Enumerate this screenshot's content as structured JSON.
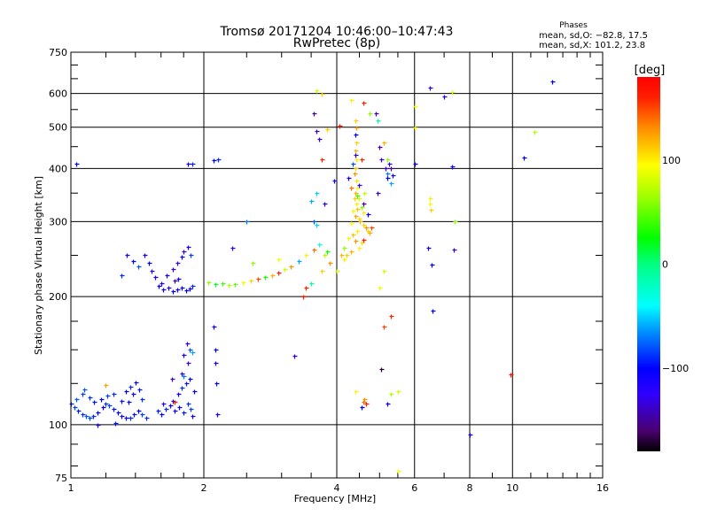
{
  "chart_data": {
    "type": "scatter",
    "title": "Tromsø 20171204 10:46:00–10:47:43",
    "subtitle": "RwPretec (8p)",
    "xlabel": "Frequency [MHz]",
    "ylabel": "Stationary phase Virtual Height [km]",
    "xscale": "log",
    "yscale": "log",
    "xlim": [
      1,
      16
    ],
    "ylim": [
      75,
      750
    ],
    "xticks": [
      "1",
      "2",
      "4",
      "6",
      "8",
      "10",
      "16"
    ],
    "xtick_values": [
      1,
      2,
      4,
      6,
      8,
      10,
      16
    ],
    "yticks": [
      "75",
      "100",
      "200",
      "300",
      "400",
      "500",
      "600",
      "750"
    ],
    "ytick_values": [
      75,
      100,
      200,
      300,
      400,
      500,
      600,
      750
    ],
    "xgrid": [
      2,
      4,
      6,
      8,
      10
    ],
    "ygrid": [
      100,
      200,
      300,
      400,
      500,
      600
    ],
    "stats": {
      "heading": "Phases",
      "line_o": "mean, sd,O: −82.8, 17.5",
      "line_x": "mean, sd,X: 101.2, 23.8"
    },
    "colorbar": {
      "label": "[deg]",
      "range": [
        -180,
        180
      ],
      "ticks": [
        "100",
        "0",
        "−100"
      ],
      "tick_values": [
        100,
        0,
        -100
      ],
      "stops": [
        [
          -180,
          "#000000"
        ],
        [
          -160,
          "#4a0070"
        ],
        [
          -125,
          "#3000ff"
        ],
        [
          -100,
          "#0000ff"
        ],
        [
          -65,
          "#0090ff"
        ],
        [
          -40,
          "#00ffff"
        ],
        [
          0,
          "#00ff80"
        ],
        [
          25,
          "#00ff00"
        ],
        [
          65,
          "#a0ff00"
        ],
        [
          95,
          "#ffff00"
        ],
        [
          130,
          "#ff9000"
        ],
        [
          160,
          "#ff2000"
        ],
        [
          180,
          "#ff0000"
        ]
      ]
    },
    "point_fields": [
      "frequency_MHz",
      "height_km",
      "phase_deg"
    ],
    "points": [
      [
        1.0,
        112,
        -90
      ],
      [
        1.02,
        110,
        -85
      ],
      [
        1.04,
        108,
        -95
      ],
      [
        1.06,
        106,
        -90
      ],
      [
        1.08,
        105,
        -80
      ],
      [
        1.1,
        104,
        -85
      ],
      [
        1.12,
        105,
        -90
      ],
      [
        1.15,
        107,
        -100
      ],
      [
        1.18,
        110,
        -105
      ],
      [
        1.2,
        112,
        -90
      ],
      [
        1.22,
        111,
        -85
      ],
      [
        1.25,
        109,
        -95
      ],
      [
        1.28,
        107,
        -100
      ],
      [
        1.3,
        105,
        -110
      ],
      [
        1.33,
        104,
        -105
      ],
      [
        1.36,
        104,
        -90
      ],
      [
        1.39,
        106,
        -95
      ],
      [
        1.42,
        108,
        -100
      ],
      [
        1.45,
        106,
        -85
      ],
      [
        1.48,
        104,
        -90
      ],
      [
        1.03,
        115,
        -80
      ],
      [
        1.06,
        118,
        -85
      ],
      [
        1.1,
        116,
        -90
      ],
      [
        1.13,
        113,
        -95
      ],
      [
        1.17,
        115,
        -100
      ],
      [
        1.21,
        117,
        -85
      ],
      [
        1.25,
        118,
        -90
      ],
      [
        1.3,
        114,
        -95
      ],
      [
        1.33,
        120,
        -100
      ],
      [
        1.36,
        123,
        -90
      ],
      [
        1.38,
        118,
        -110
      ],
      [
        1.4,
        126,
        -105
      ],
      [
        1.43,
        121,
        -95
      ],
      [
        1.45,
        115,
        -90
      ],
      [
        1.35,
        113,
        -100
      ],
      [
        1.26,
        101,
        -95
      ],
      [
        1.15,
        100,
        -110
      ],
      [
        1.07,
        121,
        -80
      ],
      [
        1.2,
        124,
        125
      ],
      [
        1.57,
        108,
        -95
      ],
      [
        1.6,
        106,
        -100
      ],
      [
        1.64,
        109,
        -90
      ],
      [
        1.68,
        111,
        -105
      ],
      [
        1.72,
        108,
        -110
      ],
      [
        1.76,
        110,
        -100
      ],
      [
        1.8,
        107,
        -95
      ],
      [
        1.84,
        112,
        -90
      ],
      [
        1.87,
        109,
        -85
      ],
      [
        1.62,
        112,
        -120
      ],
      [
        1.7,
        114,
        -110
      ],
      [
        1.75,
        118,
        -105
      ],
      [
        1.78,
        122,
        -90
      ],
      [
        1.82,
        125,
        -95
      ],
      [
        1.86,
        128,
        -100
      ],
      [
        1.78,
        132,
        -120
      ],
      [
        1.84,
        140,
        -130
      ],
      [
        1.8,
        146,
        -110
      ],
      [
        1.86,
        150,
        -80
      ],
      [
        1.83,
        155,
        -120
      ],
      [
        1.88,
        148,
        -60
      ],
      [
        1.69,
        128,
        -140
      ],
      [
        1.9,
        120,
        -100
      ],
      [
        1.72,
        113,
        160
      ],
      [
        1.8,
        130,
        -70
      ],
      [
        1.88,
        105,
        -110
      ],
      [
        1.47,
        250,
        -110
      ],
      [
        1.5,
        240,
        -100
      ],
      [
        1.52,
        230,
        -120
      ],
      [
        1.55,
        222,
        -110
      ],
      [
        1.58,
        212,
        -100
      ],
      [
        1.62,
        208,
        -110
      ],
      [
        1.66,
        210,
        -115
      ],
      [
        1.7,
        206,
        -100
      ],
      [
        1.74,
        208,
        -110
      ],
      [
        1.78,
        210,
        -105
      ],
      [
        1.82,
        207,
        -100
      ],
      [
        1.86,
        209,
        -110
      ],
      [
        1.88,
        212,
        -90
      ],
      [
        1.6,
        215,
        -120
      ],
      [
        1.65,
        225,
        -110
      ],
      [
        1.7,
        232,
        -130
      ],
      [
        1.74,
        240,
        -130
      ],
      [
        1.78,
        248,
        -100
      ],
      [
        1.8,
        255,
        -140
      ],
      [
        1.84,
        262,
        -110
      ],
      [
        1.87,
        250,
        -85
      ],
      [
        1.72,
        218,
        -150
      ],
      [
        1.34,
        250,
        -110
      ],
      [
        1.38,
        242,
        -100
      ],
      [
        1.42,
        236,
        -80
      ],
      [
        1.3,
        225,
        -90
      ],
      [
        1.75,
        220,
        -110
      ],
      [
        1.03,
        410,
        -100
      ],
      [
        1.84,
        410,
        -110
      ],
      [
        1.88,
        410,
        -90
      ],
      [
        2.1,
        418,
        -100
      ],
      [
        2.15,
        420,
        -90
      ],
      [
        2.05,
        216,
        60
      ],
      [
        2.12,
        214,
        20
      ],
      [
        2.2,
        215,
        40
      ],
      [
        2.28,
        213,
        70
      ],
      [
        2.35,
        214,
        50
      ],
      [
        2.45,
        216,
        90
      ],
      [
        2.55,
        218,
        110
      ],
      [
        2.65,
        220,
        150
      ],
      [
        2.75,
        222,
        30
      ],
      [
        2.85,
        225,
        120
      ],
      [
        2.95,
        228,
        160
      ],
      [
        3.05,
        232,
        80
      ],
      [
        3.15,
        236,
        130
      ],
      [
        3.28,
        242,
        -60
      ],
      [
        3.4,
        250,
        100
      ],
      [
        3.55,
        258,
        140
      ],
      [
        3.65,
        266,
        -30
      ],
      [
        2.58,
        240,
        60
      ],
      [
        2.95,
        245,
        90
      ],
      [
        3.35,
        200,
        160
      ],
      [
        2.32,
        260,
        -120
      ],
      [
        2.5,
        300,
        -70
      ],
      [
        2.1,
        170,
        -110
      ],
      [
        2.12,
        150,
        -100
      ],
      [
        2.12,
        140,
        -110
      ],
      [
        2.13,
        125,
        -100
      ],
      [
        2.14,
        106,
        -110
      ],
      [
        3.2,
        145,
        -120
      ],
      [
        4.4,
        520,
        110
      ],
      [
        4.42,
        500,
        130
      ],
      [
        4.4,
        480,
        -100
      ],
      [
        4.42,
        460,
        110
      ],
      [
        4.4,
        440,
        120
      ],
      [
        4.42,
        420,
        100
      ],
      [
        4.4,
        400,
        110
      ],
      [
        4.38,
        390,
        130
      ],
      [
        4.42,
        375,
        105
      ],
      [
        4.45,
        360,
        95
      ],
      [
        4.4,
        350,
        120
      ],
      [
        4.38,
        340,
        110
      ],
      [
        4.42,
        330,
        100
      ],
      [
        4.45,
        322,
        115
      ],
      [
        4.35,
        318,
        90
      ],
      [
        4.4,
        310,
        125
      ],
      [
        4.48,
        305,
        105
      ],
      [
        4.52,
        300,
        120
      ],
      [
        4.3,
        298,
        95
      ],
      [
        4.6,
        295,
        110
      ],
      [
        4.65,
        290,
        130
      ],
      [
        4.7,
        285,
        110
      ],
      [
        4.75,
        282,
        120
      ],
      [
        4.8,
        290,
        150
      ],
      [
        4.45,
        285,
        100
      ],
      [
        4.35,
        280,
        115
      ],
      [
        4.25,
        275,
        90
      ],
      [
        4.4,
        270,
        130
      ],
      [
        4.55,
        268,
        105
      ],
      [
        4.5,
        260,
        100
      ],
      [
        4.3,
        255,
        120
      ],
      [
        4.2,
        250,
        110
      ],
      [
        4.15,
        245,
        100
      ],
      [
        4.6,
        272,
        160
      ],
      [
        4.5,
        340,
        80
      ],
      [
        4.55,
        325,
        60
      ],
      [
        4.6,
        315,
        100
      ],
      [
        4.45,
        345,
        40
      ],
      [
        4.3,
        360,
        140
      ],
      [
        4.62,
        350,
        75
      ],
      [
        4.5,
        365,
        -120
      ],
      [
        4.35,
        410,
        -80
      ],
      [
        4.55,
        420,
        160
      ],
      [
        4.6,
        330,
        -150
      ],
      [
        4.7,
        312,
        -100
      ],
      [
        4.25,
        380,
        -110
      ],
      [
        4.4,
        430,
        -140
      ],
      [
        4.15,
        260,
        60
      ],
      [
        4.1,
        250,
        120
      ],
      [
        3.6,
        610,
        80
      ],
      [
        3.7,
        600,
        110
      ],
      [
        3.55,
        540,
        -150
      ],
      [
        3.6,
        490,
        -140
      ],
      [
        3.65,
        470,
        -130
      ],
      [
        3.7,
        420,
        160
      ],
      [
        3.8,
        495,
        110
      ],
      [
        3.5,
        335,
        -60
      ],
      [
        3.55,
        300,
        -80
      ],
      [
        3.6,
        295,
        -50
      ],
      [
        3.75,
        330,
        -120
      ],
      [
        3.6,
        350,
        -50
      ],
      [
        3.8,
        255,
        30
      ],
      [
        3.75,
        250,
        70
      ],
      [
        3.85,
        240,
        130
      ],
      [
        3.7,
        230,
        110
      ],
      [
        3.5,
        215,
        -10
      ],
      [
        3.4,
        210,
        160
      ],
      [
        4.0,
        230,
        80
      ],
      [
        3.95,
        375,
        -110
      ],
      [
        4.05,
        505,
        170
      ],
      [
        4.3,
        580,
        100
      ],
      [
        4.6,
        570,
        160
      ],
      [
        4.75,
        540,
        60
      ],
      [
        4.9,
        540,
        -140
      ],
      [
        4.95,
        520,
        -10
      ],
      [
        5.0,
        450,
        -140
      ],
      [
        5.1,
        460,
        120
      ],
      [
        5.05,
        420,
        -130
      ],
      [
        5.15,
        400,
        -130
      ],
      [
        5.2,
        380,
        -100
      ],
      [
        5.25,
        410,
        -120
      ],
      [
        5.3,
        400,
        -150
      ],
      [
        5.2,
        420,
        60
      ],
      [
        4.95,
        350,
        -140
      ],
      [
        5.3,
        370,
        -60
      ],
      [
        5.35,
        385,
        -110
      ],
      [
        5.2,
        390,
        -70
      ],
      [
        5.1,
        230,
        80
      ],
      [
        5.0,
        210,
        90
      ],
      [
        5.1,
        170,
        150
      ],
      [
        5.05,
        135,
        -170
      ],
      [
        5.2,
        112,
        -100
      ],
      [
        5.3,
        118,
        70
      ],
      [
        5.5,
        120,
        80
      ],
      [
        4.6,
        113,
        140
      ],
      [
        4.65,
        112,
        160
      ],
      [
        4.55,
        110,
        -100
      ],
      [
        4.62,
        115,
        130
      ],
      [
        4.4,
        120,
        100
      ],
      [
        5.3,
        180,
        160
      ],
      [
        5.5,
        78,
        90
      ],
      [
        6.0,
        560,
        90
      ],
      [
        6.0,
        500,
        100
      ],
      [
        6.0,
        410,
        -110
      ],
      [
        6.5,
        620,
        -130
      ],
      [
        7.0,
        590,
        -120
      ],
      [
        7.3,
        605,
        80
      ],
      [
        6.5,
        340,
        100
      ],
      [
        6.52,
        320,
        110
      ],
      [
        6.5,
        330,
        90
      ],
      [
        6.45,
        260,
        -110
      ],
      [
        6.55,
        238,
        -100
      ],
      [
        6.6,
        185,
        -100
      ],
      [
        7.3,
        405,
        -110
      ],
      [
        7.4,
        300,
        60
      ],
      [
        7.35,
        258,
        -140
      ],
      [
        9.9,
        131,
        170
      ],
      [
        12.3,
        640,
        -100
      ],
      [
        10.6,
        425,
        -100
      ],
      [
        11.2,
        488,
        70
      ],
      [
        8.0,
        95,
        -110
      ]
    ]
  }
}
